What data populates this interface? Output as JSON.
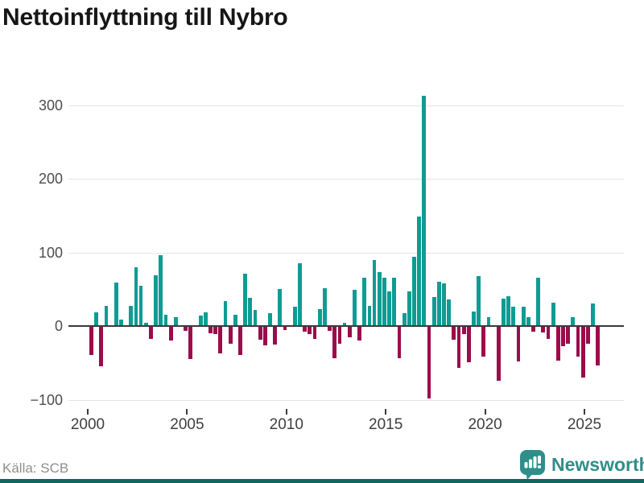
{
  "title": "Nettoinflyttning till Nybro",
  "source": "Källa: SCB",
  "branding": {
    "name": "Newsworthy",
    "logo_icon": "newsworthy-bubble-chart-icon"
  },
  "colors": {
    "positive": "#0e9c93",
    "negative": "#9b0c4b",
    "grid": "#e4e4e4",
    "zero_line": "#3a3a3a",
    "axis_text": "#4d4d4d",
    "brand_teal": "#2f8e89",
    "footer_bar": "#11665f",
    "source_text": "#8e8e8e",
    "title_text": "#161616"
  },
  "chart_data": {
    "type": "bar",
    "title": "Nettoinflyttning till Nybro",
    "xlabel": "",
    "ylabel": "",
    "frequency": "quarterly",
    "grid": true,
    "legend": false,
    "ylim": [
      -110,
      330
    ],
    "y_ticks": [
      300,
      200,
      100,
      0,
      -100
    ],
    "y_tick_labels": [
      "300",
      "200",
      "100",
      "0",
      "−100"
    ],
    "x_tick_labels": [
      "2000",
      "2005",
      "2010",
      "2015",
      "2020",
      "2025"
    ],
    "quarters": [
      "2000Q1",
      "2000Q2",
      "2000Q3",
      "2000Q4",
      "2001Q1",
      "2001Q2",
      "2001Q3",
      "2001Q4",
      "2002Q1",
      "2002Q2",
      "2002Q3",
      "2002Q4",
      "2003Q1",
      "2003Q2",
      "2003Q3",
      "2003Q4",
      "2004Q1",
      "2004Q2",
      "2004Q3",
      "2004Q4",
      "2005Q1",
      "2005Q2",
      "2005Q3",
      "2005Q4",
      "2006Q1",
      "2006Q2",
      "2006Q3",
      "2006Q4",
      "2007Q1",
      "2007Q2",
      "2007Q3",
      "2007Q4",
      "2008Q1",
      "2008Q2",
      "2008Q3",
      "2008Q4",
      "2009Q1",
      "2009Q2",
      "2009Q3",
      "2009Q4",
      "2010Q1",
      "2010Q2",
      "2010Q3",
      "2010Q4",
      "2011Q1",
      "2011Q2",
      "2011Q3",
      "2011Q4",
      "2012Q1",
      "2012Q2",
      "2012Q3",
      "2012Q4",
      "2013Q1",
      "2013Q2",
      "2013Q3",
      "2013Q4",
      "2014Q1",
      "2014Q2",
      "2014Q3",
      "2014Q4",
      "2015Q1",
      "2015Q2",
      "2015Q3",
      "2015Q4",
      "2016Q1",
      "2016Q2",
      "2016Q3",
      "2016Q4",
      "2017Q1",
      "2017Q2",
      "2017Q3",
      "2017Q4",
      "2018Q1",
      "2018Q2",
      "2018Q3",
      "2018Q4",
      "2019Q1",
      "2019Q2",
      "2019Q3",
      "2019Q4",
      "2020Q1",
      "2020Q2",
      "2020Q3",
      "2020Q4",
      "2021Q1",
      "2021Q2",
      "2021Q3",
      "2021Q4",
      "2022Q1",
      "2022Q2",
      "2022Q3",
      "2022Q4",
      "2023Q1",
      "2023Q2",
      "2023Q3",
      "2023Q4",
      "2024Q1",
      "2024Q2",
      "2024Q3",
      "2024Q4",
      "2025Q1",
      "2025Q2",
      "2025Q3"
    ],
    "values": [
      -38,
      18,
      -54,
      26,
      0,
      58,
      8,
      0,
      26,
      79,
      54,
      3,
      -16,
      68,
      95,
      14,
      -19,
      11,
      0,
      -5,
      -44,
      0,
      13,
      17,
      -9,
      -10,
      -36,
      33,
      -23,
      14,
      -38,
      70,
      37,
      21,
      -17,
      -25,
      16,
      -24,
      49,
      -4,
      0,
      25,
      84,
      -7,
      -10,
      -16,
      22,
      50,
      -6,
      -43,
      -23,
      3,
      -14,
      48,
      -19,
      64,
      26,
      89,
      72,
      65,
      46,
      64,
      -43,
      16,
      46,
      93,
      147,
      311,
      -97,
      38,
      59,
      57,
      35,
      -17,
      -56,
      -10,
      -48,
      19,
      67,
      -40,
      11,
      0,
      -73,
      36,
      39,
      25,
      -47,
      25,
      11,
      -7,
      64,
      -8,
      -16,
      31,
      -46,
      -26,
      -23,
      11,
      -40,
      -69,
      -23,
      30,
      -53
    ]
  }
}
